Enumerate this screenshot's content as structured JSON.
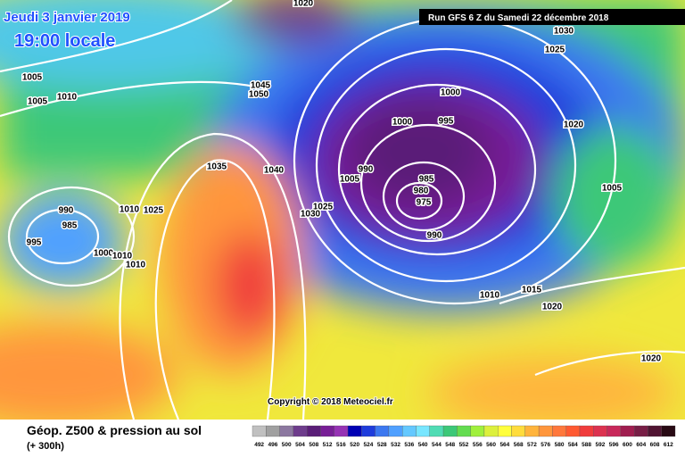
{
  "header": {
    "date": "Jeudi 3 janvier 2019",
    "time": "19:00 locale",
    "run": "Run GFS 6 Z du Samedi 22 décembre 2018"
  },
  "isobar_labels": [
    "1020",
    "1030",
    "1025",
    "1005",
    "1005",
    "1010",
    "1045",
    "1050",
    "1000",
    "1000",
    "995",
    "1020",
    "1035",
    "1040",
    "990",
    "1005",
    "985",
    "980",
    "975",
    "1005",
    "1025",
    "1030",
    "990",
    "985",
    "1010",
    "1025",
    "995",
    "990",
    "1000",
    "1010",
    "1010",
    "1010",
    "1015",
    "1020",
    "1020"
  ],
  "copyright": "Copyright © 2018 Meteociel.fr",
  "footer": {
    "title": "Géop. Z500 & pression au sol",
    "lead_time": "(+ 300h)"
  },
  "legend": {
    "values": [
      492,
      496,
      500,
      504,
      508,
      512,
      516,
      520,
      524,
      528,
      532,
      536,
      540,
      544,
      548,
      552,
      556,
      560,
      564,
      568,
      572,
      576,
      580,
      584,
      588,
      592,
      596,
      600,
      604,
      608,
      612
    ],
    "colors": [
      "#c0c0c0",
      "#a0a0a0",
      "#8c78a0",
      "#6e3c8c",
      "#5a1e78",
      "#781e96",
      "#9632b4",
      "#0000b4",
      "#1e3cdc",
      "#3c78f0",
      "#50a0ff",
      "#64c8ff",
      "#78e6ff",
      "#50dcb4",
      "#3cc878",
      "#64dc50",
      "#a0f03c",
      "#dcf03c",
      "#ffff3c",
      "#ffdc3c",
      "#ffb43c",
      "#ff963c",
      "#ff783c",
      "#ff5a32",
      "#f03c3c",
      "#dc3250",
      "#c8285a",
      "#a01e50",
      "#781e46",
      "#501432",
      "#280a14"
    ]
  }
}
